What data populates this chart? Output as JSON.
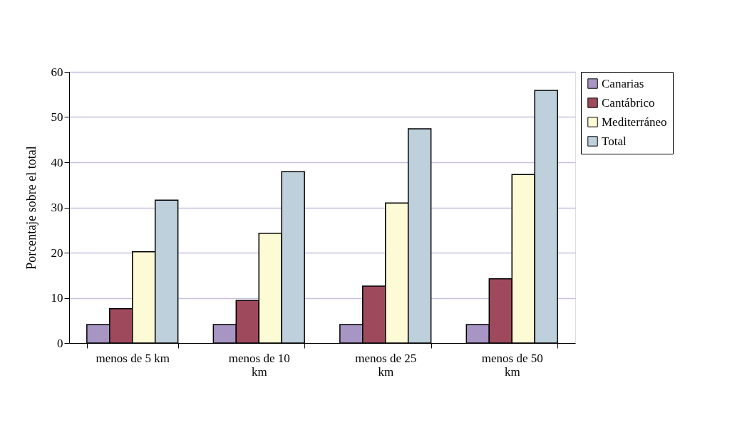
{
  "chart_data": {
    "type": "bar",
    "ylabel": "Porcentaje sobre el total",
    "categories": [
      "menos de 5 km",
      "menos de 10 km",
      "menos de 25 km",
      "menos de 50 km"
    ],
    "series": [
      {
        "name": "Canarias",
        "color": "#a795c4",
        "values": [
          4.1,
          4.1,
          4.1,
          4.1
        ]
      },
      {
        "name": "Cantábrico",
        "color": "#9e4a5c",
        "values": [
          7.6,
          9.4,
          12.6,
          14.2
        ]
      },
      {
        "name": "Mediterráneo",
        "color": "#fdfad6",
        "values": [
          20.2,
          24.3,
          31.0,
          37.3
        ]
      },
      {
        "name": "Total",
        "color": "#bdd0dc",
        "values": [
          31.6,
          37.9,
          47.4,
          55.9
        ]
      }
    ],
    "ylim": [
      0,
      60
    ],
    "yticks": [
      0,
      10,
      20,
      30,
      40,
      50,
      60
    ],
    "grid": "y",
    "legend": "right"
  }
}
